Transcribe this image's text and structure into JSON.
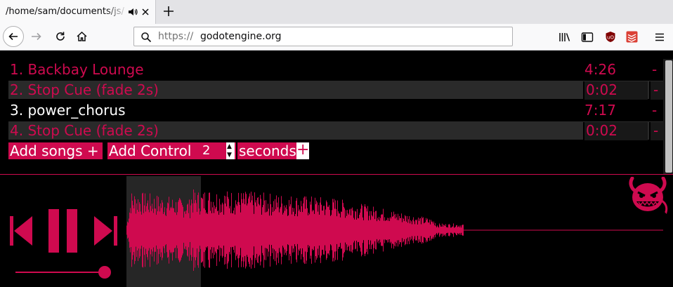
{
  "browser": {
    "tab_title": "/home/sam/documents/js/",
    "new_tab_symbol": "+",
    "url_scheme": "https://",
    "url_host": "godotengine.org"
  },
  "colors": {
    "accent": "#cf0a4f",
    "current": "#ffffff",
    "cue_bg": "#2a2a2a"
  },
  "playlist": [
    {
      "label": "1. Backbay Lounge",
      "duration": "4:26",
      "remove": "-",
      "kind": "song",
      "current": false
    },
    {
      "label": "2. Stop Cue (fade 2s)",
      "duration": "0:02",
      "remove": "-",
      "kind": "cue",
      "current": false
    },
    {
      "label": "3. power_chorus",
      "duration": "7:17",
      "remove": "-",
      "kind": "song",
      "current": true
    },
    {
      "label": "4. Stop Cue (fade 2s)",
      "duration": "0:02",
      "remove": "-",
      "kind": "cue",
      "current": false
    }
  ],
  "controls": {
    "add_songs": "Add songs +",
    "add_control": "Add Control",
    "fade_seconds": "2",
    "seconds_label": "seconds",
    "add_plus": "+"
  },
  "player": {
    "volume": 0.92,
    "playback_progress": 0.14,
    "state": "playing",
    "icons": [
      "previous-icon",
      "pause-icon",
      "next-icon",
      "devil-logo-icon"
    ]
  }
}
